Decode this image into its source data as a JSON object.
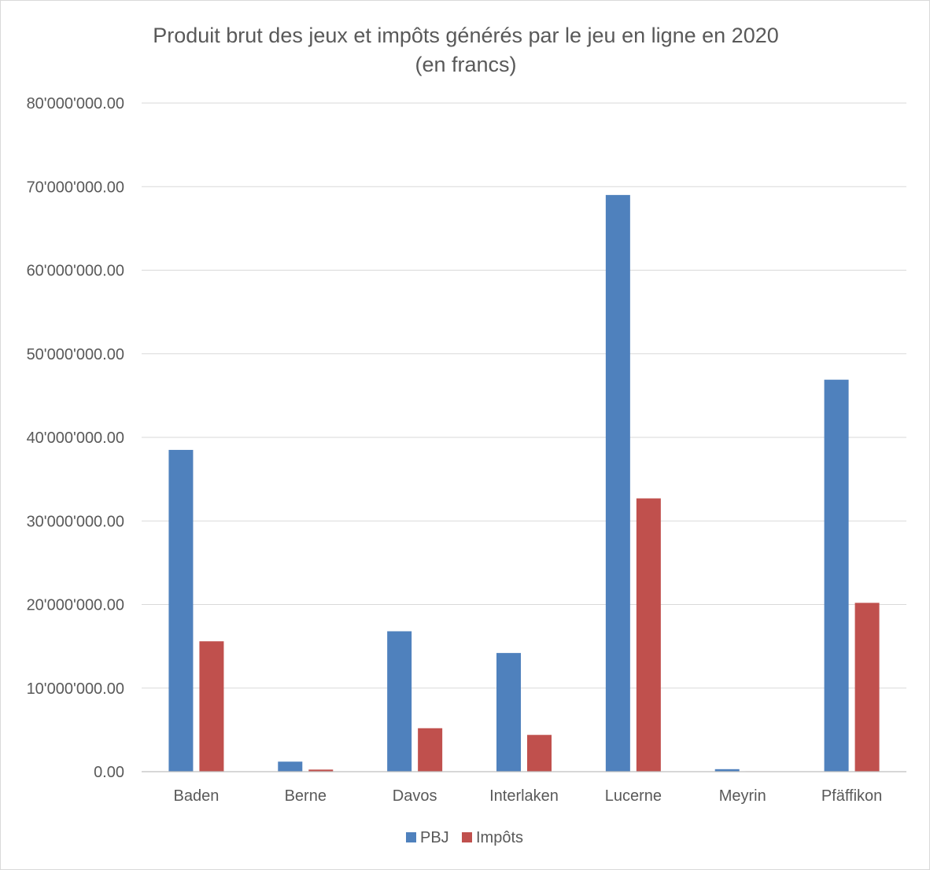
{
  "chart_data": {
    "type": "bar",
    "title": "Produit brut des jeux et impôts générés par le jeu en ligne en 2020",
    "subtitle": "(en francs)",
    "xlabel": "",
    "ylabel": "",
    "categories": [
      "Baden",
      "Berne",
      "Davos",
      "Interlaken",
      "Lucerne",
      "Meyrin",
      "Pfäffikon"
    ],
    "series": [
      {
        "name": "PBJ",
        "color": "#4f81bd",
        "values": [
          38500000,
          1200000,
          16800000,
          14200000,
          69000000,
          300000,
          46900000
        ]
      },
      {
        "name": "Impôts",
        "color": "#c0504d",
        "values": [
          15600000,
          250000,
          5200000,
          4400000,
          32700000,
          50000,
          20200000
        ]
      }
    ],
    "ylim": [
      0,
      80000000
    ],
    "yticks": [
      0,
      10000000,
      20000000,
      30000000,
      40000000,
      50000000,
      60000000,
      70000000,
      80000000
    ],
    "ytick_labels": [
      "0.00",
      "10'000'000.00",
      "20'000'000.00",
      "30'000'000.00",
      "40'000'000.00",
      "50'000'000.00",
      "60'000'000.00",
      "70'000'000.00",
      "80'000'000.00"
    ],
    "grid": true,
    "legend_position": "bottom"
  }
}
